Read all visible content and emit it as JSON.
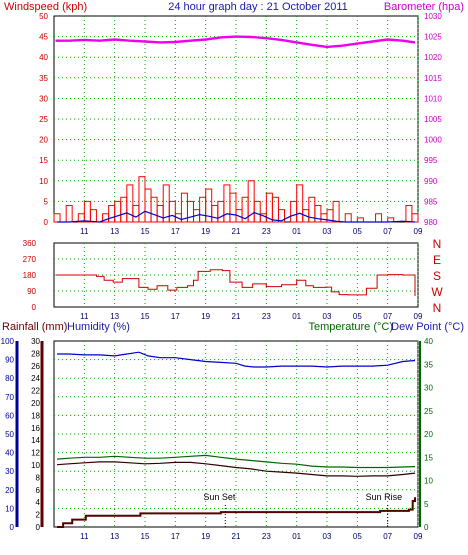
{
  "title": "24 hour graph day : 21 October 2011",
  "colors": {
    "wind": "#ff0000",
    "gust": "#0000cc",
    "baro": "#ee00ee",
    "dir": "#cc0000",
    "humidity": "#0000cc",
    "temperature": "#006600",
    "dewpoint": "#330000",
    "rain": "#550000",
    "frame": "#000000",
    "grid": "#00aa00",
    "green_axis": "#006600",
    "red_axis": "#cc0000",
    "blue_axis": "#000099"
  },
  "chart_data": [
    {
      "type": "line",
      "panel": "wind-baro",
      "ylabel_left": "Windspeed (kph)",
      "ylabel_right": "Barometer (hpa)",
      "yticks_left": [
        "0",
        "5",
        "10",
        "15",
        "20",
        "25",
        "30",
        "35",
        "40",
        "45",
        "50"
      ],
      "yticks_right": [
        "980",
        "985",
        "990",
        "995",
        "1000",
        "1005",
        "1010",
        "1015",
        "1020",
        "1025",
        "1030"
      ],
      "ylim_left": [
        0,
        50
      ],
      "ylim_right": [
        980,
        1030
      ],
      "xlim": [
        9,
        33
      ],
      "xticks": [
        "11",
        "13",
        "15",
        "17",
        "19",
        "21",
        "23",
        "01",
        "03",
        "05",
        "07",
        "09"
      ],
      "grid": true,
      "series": [
        {
          "name": "Barometer (hpa)",
          "axis": "right",
          "x": [
            9.1,
            10,
            11,
            12,
            13,
            14,
            15,
            16,
            17,
            18,
            19,
            20,
            21,
            22,
            23,
            24,
            25,
            26,
            27,
            28,
            29,
            30,
            31,
            32,
            32.8
          ],
          "values": [
            1024.0,
            1024.0,
            1024.2,
            1024.0,
            1024.3,
            1024.0,
            1023.8,
            1023.6,
            1023.7,
            1024.0,
            1024.3,
            1024.8,
            1025.0,
            1024.9,
            1024.6,
            1024.2,
            1023.6,
            1023.0,
            1022.5,
            1022.8,
            1023.3,
            1023.8,
            1024.3,
            1024.0,
            1023.6
          ]
        },
        {
          "name": "Windspeed (kph)",
          "axis": "left",
          "x": [
            9.2,
            9.6,
            10,
            10.4,
            10.8,
            11.2,
            11.6,
            12,
            12.4,
            12.8,
            13.2,
            13.6,
            14,
            14.4,
            14.8,
            15.2,
            15.6,
            16,
            16.4,
            16.8,
            17.2,
            17.6,
            18,
            18.4,
            18.8,
            19.2,
            19.6,
            20,
            20.4,
            20.8,
            21.2,
            21.6,
            22,
            22.4,
            22.8,
            23.2,
            23.6,
            24,
            24.4,
            24.8,
            25.2,
            25.6,
            26,
            26.4,
            26.8,
            27.2,
            27.6,
            28,
            28.4,
            28.8,
            29.2,
            29.6,
            30,
            30.4,
            30.8,
            31.2,
            31.6,
            32,
            32.4,
            32.8
          ],
          "values": [
            2,
            0,
            4,
            0,
            2,
            5,
            3,
            0,
            2,
            4,
            5,
            6,
            9,
            4,
            11,
            8,
            6,
            4,
            9,
            5,
            2,
            7,
            5,
            3,
            6,
            8,
            4,
            5,
            9,
            7,
            3,
            6,
            10,
            5,
            2,
            7,
            6,
            3,
            0,
            5,
            9,
            3,
            6,
            4,
            2,
            3,
            5,
            0,
            2,
            0,
            1,
            0,
            0,
            2,
            0,
            1,
            0,
            0,
            4,
            2
          ]
        },
        {
          "name": "Gust",
          "axis": "left",
          "x": [
            9.2,
            10,
            11,
            12,
            12.6,
            13.2,
            13.8,
            14.4,
            15,
            15.6,
            16.2,
            16.8,
            17.4,
            18,
            18.6,
            19.2,
            19.8,
            20.4,
            21,
            21.6,
            22.2,
            22.8,
            23.4,
            24,
            24.6,
            25.2,
            25.8,
            26.4,
            27,
            27.6,
            28.2,
            29,
            30,
            31,
            32,
            32.8
          ],
          "values": [
            0,
            0,
            0.3,
            0,
            0.8,
            1.5,
            2.2,
            1.2,
            2.6,
            1.8,
            1,
            1.6,
            0.6,
            1.2,
            1.8,
            1.4,
            0.9,
            2,
            1.7,
            0.8,
            2.3,
            1.5,
            0.5,
            0.3,
            1.4,
            2.1,
            1.2,
            0.8,
            0.5,
            0.2,
            0,
            0,
            0,
            0,
            0.2,
            0
          ]
        }
      ]
    },
    {
      "type": "line",
      "panel": "wind-direction",
      "yticks": [
        "0",
        "90",
        "180",
        "270",
        "360"
      ],
      "compass": [
        "N",
        "W",
        "S",
        "E",
        "N"
      ],
      "ylim": [
        0,
        360
      ],
      "xlim": [
        9,
        33
      ],
      "xticks": [
        "11",
        "13",
        "15",
        "17",
        "19",
        "21",
        "23",
        "01",
        "03",
        "05",
        "07",
        "09"
      ],
      "grid": true,
      "series": [
        {
          "name": "Wind direction",
          "step": true,
          "x": [
            9.1,
            11.8,
            12.3,
            12.9,
            13.5,
            14.6,
            15.2,
            15.8,
            16.5,
            17.1,
            17.8,
            18.2,
            18.5,
            19.3,
            20.1,
            20.6,
            21.4,
            22.1,
            23.0,
            24.0,
            25.0,
            25.6,
            26.1,
            26.9,
            27.3,
            27.8,
            28.4,
            29.6,
            30.3,
            31.0,
            32.0,
            32.8
          ],
          "values": [
            180,
            172,
            150,
            140,
            160,
            110,
            100,
            120,
            95,
            110,
            120,
            150,
            200,
            210,
            205,
            140,
            110,
            130,
            115,
            125,
            150,
            120,
            110,
            112,
            85,
            70,
            68,
            105,
            180,
            182,
            180,
            62
          ]
        }
      ]
    },
    {
      "type": "line",
      "panel": "temp-hum-rain",
      "ylabel_left_1": "Rainfall (mm)",
      "ylabel_left_2": "Humidity (%)",
      "ylabel_right_1": "Temperature (°C)",
      "ylabel_right_2": "Dew Point (°C)",
      "yticks_rain": [
        "0",
        "2",
        "4",
        "6",
        "8",
        "10",
        "12",
        "14",
        "16",
        "18",
        "20",
        "22",
        "24",
        "26",
        "28",
        "30"
      ],
      "yticks_humidity": [
        "0",
        "10",
        "20",
        "30",
        "40",
        "50",
        "60",
        "70",
        "80",
        "90",
        "100"
      ],
      "yticks_temp": [
        "0",
        "5",
        "10",
        "15",
        "20",
        "25",
        "30",
        "35",
        "40"
      ],
      "ylim_rain": [
        0,
        30
      ],
      "ylim_humidity": [
        0,
        100
      ],
      "ylim_temp": [
        0,
        40
      ],
      "xlim": [
        9,
        33
      ],
      "xticks": [
        "11",
        "13",
        "15",
        "17",
        "19",
        "21",
        "23",
        "01",
        "03",
        "05",
        "07",
        "09"
      ],
      "grid": true,
      "annotations": [
        {
          "text": "Sun Set",
          "x": 19.9
        },
        {
          "text": "Sun Rise",
          "x": 30.6
        }
      ],
      "series": [
        {
          "name": "Humidity (%)",
          "axis": "humidity",
          "x": [
            9.2,
            10,
            11,
            12,
            13,
            13.8,
            14.6,
            15.2,
            16,
            17,
            18,
            19,
            20,
            21,
            21.6,
            22.2,
            23,
            24,
            25,
            26,
            27,
            28,
            29,
            30,
            31,
            32,
            32.8
          ],
          "values": [
            93,
            93,
            92.5,
            92.5,
            92,
            93,
            94,
            92,
            91,
            91,
            90,
            89,
            88.5,
            88,
            86.5,
            86,
            86,
            86.5,
            86.5,
            86.5,
            86,
            86.5,
            86.5,
            86.5,
            87,
            89,
            89.5
          ]
        },
        {
          "name": "Temperature (°C)",
          "axis": "temp",
          "x": [
            9.2,
            10,
            11,
            12,
            13,
            14,
            15,
            16,
            17,
            18,
            19,
            20,
            21,
            22,
            23,
            24,
            25,
            26,
            27,
            28,
            29,
            30,
            31,
            32,
            32.8
          ],
          "values": [
            14.6,
            14.8,
            15.0,
            15.0,
            15.2,
            15.0,
            14.8,
            14.8,
            15.0,
            15.2,
            15.4,
            15.0,
            14.6,
            14.3,
            14.0,
            13.7,
            13.5,
            13.1,
            12.9,
            12.9,
            12.8,
            12.8,
            12.8,
            12.9,
            13.0
          ]
        },
        {
          "name": "Dew Point (°C)",
          "axis": "temp",
          "x": [
            9.2,
            10,
            11,
            12,
            13,
            14,
            15,
            16,
            17,
            18,
            19,
            20,
            21,
            22,
            23,
            24,
            25,
            26,
            27,
            28,
            29,
            30,
            31,
            32,
            32.8
          ],
          "values": [
            13.4,
            13.6,
            13.8,
            14.0,
            14.0,
            13.8,
            13.6,
            13.7,
            13.9,
            13.9,
            13.6,
            13.2,
            12.8,
            12.5,
            12.0,
            11.8,
            11.6,
            11.3,
            11.0,
            11.0,
            10.9,
            11.0,
            11.0,
            11.3,
            11.6
          ]
        },
        {
          "name": "Rainfall (mm)",
          "axis": "rain",
          "step": true,
          "x": [
            9.2,
            9.6,
            10.2,
            11.1,
            14.7,
            20.0,
            30.5,
            32.4,
            32.65,
            32.8
          ],
          "values": [
            0,
            0.6,
            1.2,
            1.8,
            2.2,
            2.4,
            2.6,
            2.8,
            4.2,
            4.8
          ]
        }
      ]
    }
  ]
}
